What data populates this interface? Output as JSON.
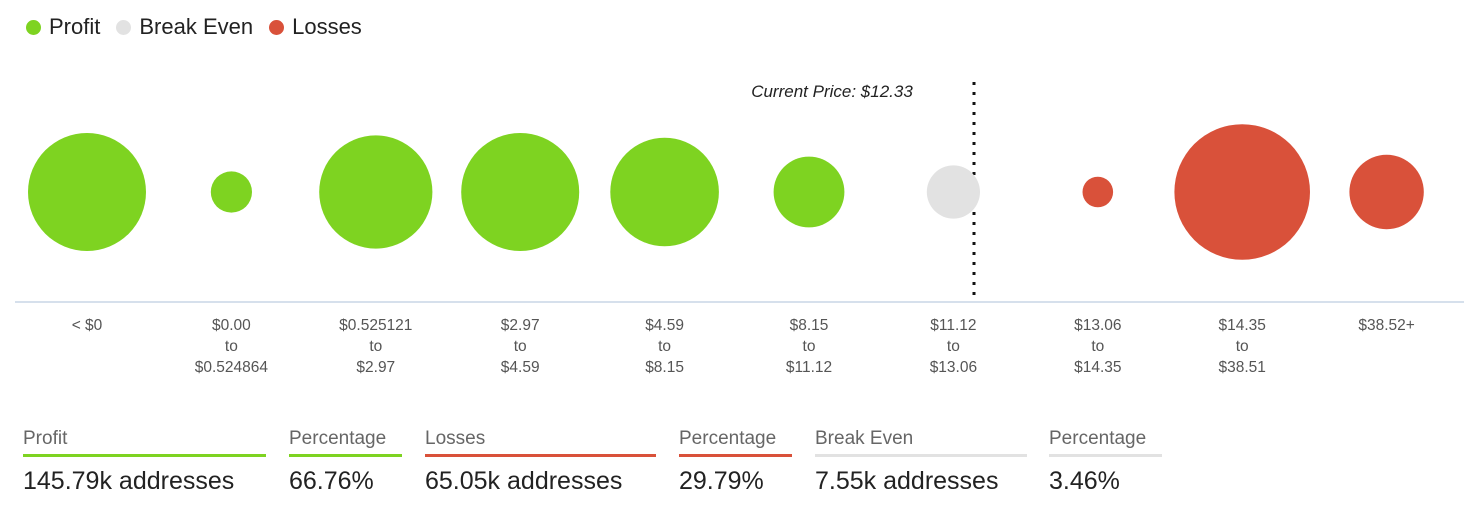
{
  "legend": [
    {
      "label": "Profit",
      "color": "#7ED321"
    },
    {
      "label": "Break Even",
      "color": "#E2E2E2"
    },
    {
      "label": "Losses",
      "color": "#D9513A"
    }
  ],
  "current_price_label": "Current Price: $12.33",
  "chart_data": {
    "type": "bubble",
    "current_price": 12.33,
    "categories": [
      {
        "label": [
          "< $0"
        ],
        "status": "profit",
        "relative_size": 1.0
      },
      {
        "label": [
          "$0.00",
          "to",
          "$0.524864"
        ],
        "status": "profit",
        "relative_size": 0.35
      },
      {
        "label": [
          "$0.525121",
          "to",
          "$2.97"
        ],
        "status": "profit",
        "relative_size": 0.96
      },
      {
        "label": [
          "$2.97",
          "to",
          "$4.59"
        ],
        "status": "profit",
        "relative_size": 1.0
      },
      {
        "label": [
          "$4.59",
          "to",
          "$8.15"
        ],
        "status": "profit",
        "relative_size": 0.92
      },
      {
        "label": [
          "$8.15",
          "to",
          "$11.12"
        ],
        "status": "profit",
        "relative_size": 0.6
      },
      {
        "label": [
          "$11.12",
          "to",
          "$13.06"
        ],
        "status": "break-even",
        "relative_size": 0.45
      },
      {
        "label": [
          "$13.06",
          "to",
          "$14.35"
        ],
        "status": "losses",
        "relative_size": 0.26
      },
      {
        "label": [
          "$14.35",
          "to",
          "$38.51"
        ],
        "status": "losses",
        "relative_size": 1.15
      },
      {
        "label": [
          "$38.52+"
        ],
        "status": "losses",
        "relative_size": 0.63
      }
    ],
    "colors": {
      "profit": "#7ED321",
      "break-even": "#E2E2E2",
      "losses": "#D9513A"
    }
  },
  "stats": {
    "profit": {
      "label": "Profit",
      "value": "145.79k addresses",
      "color": "#7ED321"
    },
    "profit_pct": {
      "label": "Percentage",
      "value": "66.76%",
      "color": "#7ED321"
    },
    "losses": {
      "label": "Losses",
      "value": "65.05k addresses",
      "color": "#D9513A"
    },
    "losses_pct": {
      "label": "Percentage",
      "value": "29.79%",
      "color": "#D9513A"
    },
    "break_even": {
      "label": "Break Even",
      "value": "7.55k addresses",
      "color": "#E2E2E2"
    },
    "break_even_pct": {
      "label": "Percentage",
      "value": "3.46%",
      "color": "#E2E2E2"
    }
  }
}
